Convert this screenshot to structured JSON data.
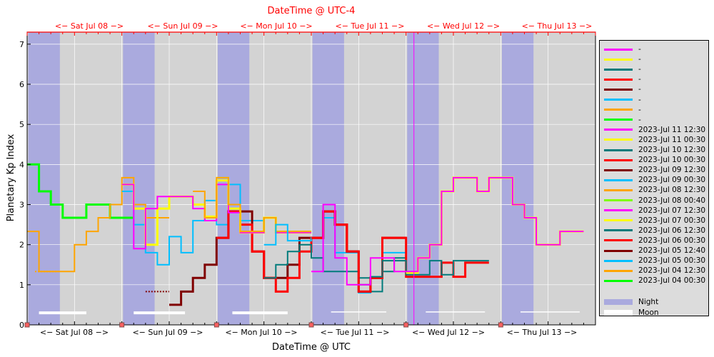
{
  "chart_data": {
    "type": "line",
    "top_title": "DateTime @ UTC-4",
    "xlabel": "DateTime @ UTC",
    "ylabel": "Planetary Kp Index",
    "ylim": [
      0,
      7.3
    ],
    "yticks": [
      0,
      1,
      2,
      3,
      4,
      5,
      6,
      7
    ],
    "xlim": [
      "2023-07-07 00:00",
      "2023-07-13 00:00"
    ],
    "bottom_day_labels": [
      "<− Sat Jul 08 −>",
      "<− Sun Jul 09 −>",
      "<− Mon Jul 10 −>",
      "<− Tue Jul 11 −>",
      "<− Wed Jul 12 −>",
      "<− Thu Jul 13 −>"
    ],
    "top_day_labels": [
      "<− Sat Jul 08 −>",
      "<− Sun Jul 09 −>",
      "<− Mon Jul 10 −>",
      "<− Tue Jul 11 −>",
      "<− Wed Jul 12 −>",
      "<− Thu Jul 13 −>"
    ],
    "grid": true,
    "legend_position": "right",
    "now_marker": "2023-07-11 02:00",
    "night_bands_start_hours": [
      0.3,
      24.3,
      48.3,
      72.3,
      96.3,
      120.3
    ],
    "moon_bars_hours": [
      [
        3,
        15
      ],
      [
        27,
        40
      ],
      [
        52,
        66
      ],
      [
        77,
        91
      ],
      [
        101,
        116
      ],
      [
        125,
        140
      ]
    ],
    "colors": {
      "magenta": "#ff00ff",
      "yellow": "#ffff00",
      "teal": "#007b7b",
      "red": "#ff0000",
      "darkred": "#800000",
      "cyan": "#00bfff",
      "orange": "#ffa500",
      "lime": "#00ff00",
      "lightlime": "#7fff00",
      "night": "#aaaade",
      "plot_bg": "#d3d3d3"
    },
    "legend": [
      {
        "label": "-",
        "color": "#ff00ff"
      },
      {
        "label": "-",
        "color": "#ffff00"
      },
      {
        "label": "-",
        "color": "#007b7b"
      },
      {
        "label": "-",
        "color": "#ff0000"
      },
      {
        "label": "-",
        "color": "#800000"
      },
      {
        "label": "-",
        "color": "#00bfff"
      },
      {
        "label": "-",
        "color": "#ffa500"
      },
      {
        "label": "-",
        "color": "#00ff00"
      },
      {
        "label": "2023-Jul 11 12:30",
        "color": "#ff00ff"
      },
      {
        "label": "2023-Jul 11 00:30",
        "color": "#ffff00"
      },
      {
        "label": "2023-Jul 10 12:30",
        "color": "#007b7b"
      },
      {
        "label": "2023-Jul 10 00:30",
        "color": "#ff0000"
      },
      {
        "label": "2023-Jul 09 12:30",
        "color": "#800000"
      },
      {
        "label": "2023-Jul 09 00:30",
        "color": "#00bfff"
      },
      {
        "label": "2023-Jul 08 12:30",
        "color": "#ffa500"
      },
      {
        "label": "2023-Jul 08 00:40",
        "color": "#7fff00"
      },
      {
        "label": "2023-Jul 07 12:30",
        "color": "#ff00ff"
      },
      {
        "label": "2023-Jul 07 00:30",
        "color": "#ffff00"
      },
      {
        "label": "2023-Jul 06 12:30",
        "color": "#007b7b"
      },
      {
        "label": "2023-Jul 06 00:30",
        "color": "#ff0000"
      },
      {
        "label": "2023-Jul 05 12:40",
        "color": "#800000"
      },
      {
        "label": "2023-Jul 05 00:30",
        "color": "#00bfff"
      },
      {
        "label": "2023-Jul 04 12:30",
        "color": "#ffa500"
      },
      {
        "label": "2023-Jul 04 00:30",
        "color": "#00ff00"
      },
      {
        "label": "Night",
        "color": "#aaaade",
        "thick": true
      },
      {
        "label": "Moon",
        "color": "#ffffff",
        "thick": true
      }
    ],
    "series": [
      {
        "name": "2023-Jul 04 00:30",
        "color": "#00ff00",
        "width": 3,
        "x": [
          0,
          3,
          6,
          9,
          12,
          15,
          18,
          21,
          24
        ],
        "y": [
          4.0,
          3.33,
          3.0,
          2.67,
          2.67,
          3.0,
          3.0,
          2.67,
          2.67
        ]
      },
      {
        "name": "2023-Jul 04 12:30",
        "color": "#ffa500",
        "width": 2,
        "x": [
          0,
          3,
          6,
          9,
          12,
          15,
          18,
          21,
          24,
          27,
          30,
          33
        ],
        "y": [
          2.33,
          1.33,
          1.33,
          1.33,
          2.0,
          2.33,
          2.67,
          3.0,
          3.67,
          3.0,
          2.67,
          2.67
        ],
        "dotted_x": [
          2,
          8
        ],
        "dotted_y": 1.33
      },
      {
        "name": "2023-Jul 05 00:30",
        "color": "#00bfff",
        "width": 2,
        "x": [
          24,
          27,
          30,
          33,
          36,
          39,
          42,
          45,
          48,
          51,
          54,
          57
        ],
        "y": [
          3.33,
          2.5,
          1.8,
          1.5,
          2.2,
          1.8,
          2.6,
          3.1,
          2.5,
          3.5,
          2.6,
          2.6
        ]
      },
      {
        "name": "2023-Jul 05 12:40",
        "color": "#800000",
        "width": 3,
        "x": [
          36,
          39,
          42,
          45,
          48,
          51,
          54,
          57,
          60,
          63,
          66,
          69
        ],
        "y": [
          0.5,
          0.83,
          1.17,
          1.5,
          2.17,
          2.83,
          2.83,
          1.83,
          1.17,
          1.17,
          1.5,
          2.17
        ],
        "dotted_x": [
          30,
          36
        ],
        "dotted_y": 0.83
      },
      {
        "name": "2023-Jul 06 00:30",
        "color": "#ff0000",
        "width": 3,
        "x": [
          48,
          51,
          54,
          57,
          60,
          63,
          66,
          69,
          72,
          75,
          78,
          81
        ],
        "y": [
          2.17,
          2.83,
          2.5,
          1.83,
          1.17,
          0.83,
          1.17,
          1.83,
          2.17,
          2.83,
          2.5,
          1.83
        ]
      },
      {
        "name": "2023-Jul 06 12:30",
        "color": "#007b7b",
        "width": 2,
        "x": [
          60,
          63,
          66,
          69,
          72,
          75,
          78,
          81,
          84,
          87,
          90,
          93
        ],
        "y": [
          1.17,
          1.5,
          1.83,
          2.0,
          1.67,
          1.33,
          1.33,
          1.33,
          1.17,
          0.83,
          1.33,
          1.67
        ]
      },
      {
        "name": "2023-Jul 07 00:30",
        "color": "#ffff00",
        "width": 3,
        "x": [
          24,
          27,
          30,
          33,
          36,
          39,
          42,
          45,
          48,
          51,
          54,
          57,
          60,
          63,
          66,
          69
        ],
        "y": [
          3.5,
          2.9,
          2.0,
          2.9,
          3.2,
          3.2,
          3.0,
          2.7,
          3.6,
          2.9,
          2.3,
          2.3,
          2.67,
          2.3,
          2.3,
          2.3
        ]
      },
      {
        "name": "2023-Jul 07 12:30",
        "color": "#ff00ff",
        "width": 2,
        "x": [
          24,
          27,
          30,
          33,
          36,
          39,
          42,
          45,
          48,
          51,
          54,
          57,
          60,
          63,
          66,
          69
        ],
        "y": [
          3.5,
          1.9,
          2.9,
          3.2,
          3.2,
          3.2,
          2.9,
          2.6,
          3.5,
          2.8,
          2.3,
          2.3,
          2.67,
          2.3,
          2.3,
          2.3
        ]
      },
      {
        "name": "2023-Jul 08 00:40",
        "color": "#7fff00",
        "width": 2,
        "x": [
          48,
          51,
          54,
          57,
          60,
          63,
          66,
          69
        ],
        "y": [
          3.67,
          3.0,
          2.33,
          2.33,
          2.67,
          2.33,
          2.33,
          2.33
        ]
      },
      {
        "name": "2023-Jul 08 12:30",
        "color": "#ffa500",
        "width": 2,
        "x": [
          42,
          45,
          48,
          51,
          54,
          57,
          60,
          63,
          66,
          69
        ],
        "y": [
          3.33,
          2.67,
          3.67,
          3.0,
          2.33,
          2.33,
          2.67,
          2.33,
          2.33,
          2.33
        ]
      },
      {
        "name": "2023-Jul 09 00:30",
        "color": "#00bfff",
        "width": 2,
        "x": [
          60,
          63,
          66,
          69,
          72,
          75,
          78,
          81,
          84,
          87,
          90,
          93
        ],
        "y": [
          2.0,
          2.5,
          2.1,
          2.1,
          2.17,
          2.67,
          1.8,
          1.8,
          0.8,
          1.2,
          1.8,
          1.8
        ]
      },
      {
        "name": "2023-Jul 09 12:30",
        "color": "#800000",
        "width": 3,
        "x": [
          72,
          75,
          78,
          81,
          84,
          87,
          90,
          93
        ],
        "y": [
          2.17,
          2.83,
          2.5,
          1.83,
          0.83,
          1.17,
          2.17,
          2.17
        ]
      },
      {
        "name": "2023-Jul 10 00:30",
        "color": "#ff0000",
        "width": 3,
        "x": [
          72,
          75,
          78,
          81,
          84,
          87,
          90,
          93,
          96,
          99,
          102,
          105,
          108,
          111,
          114
        ],
        "y": [
          2.17,
          2.83,
          2.5,
          1.83,
          0.83,
          1.17,
          2.17,
          2.17,
          1.2,
          1.2,
          1.2,
          1.55,
          1.2,
          1.55,
          1.55
        ]
      },
      {
        "name": "2023-Jul 10 12:30",
        "color": "#007b7b",
        "width": 2,
        "x": [
          84,
          87,
          90,
          93,
          96,
          99,
          102,
          105,
          108,
          111,
          114
        ],
        "y": [
          1.0,
          1.2,
          1.6,
          1.6,
          1.25,
          1.25,
          1.6,
          1.25,
          1.6,
          1.6,
          1.6
        ]
      },
      {
        "name": "2023-Jul 11 00:30",
        "color": "#ffff00",
        "width": 3,
        "x": [
          96,
          99,
          102,
          105,
          108,
          111,
          114,
          117,
          120,
          123,
          126,
          129,
          132,
          135,
          138
        ],
        "y": [
          1.3,
          1.67,
          2.0,
          3.33,
          3.67,
          3.67,
          3.33,
          3.67,
          3.67,
          3.0,
          2.67,
          2.0,
          2.0,
          2.33,
          2.33
        ]
      },
      {
        "name": "2023-Jul 11 12:30",
        "color": "#ff00ff",
        "width": 2,
        "x": [
          72,
          75,
          78,
          81,
          84,
          87,
          90,
          93,
          96,
          99,
          102,
          105,
          108,
          111,
          114,
          117,
          120,
          123,
          126,
          129,
          132,
          135,
          138
        ],
        "y": [
          1.33,
          3.0,
          1.67,
          1.0,
          1.0,
          1.67,
          1.67,
          1.33,
          1.33,
          1.67,
          2.0,
          3.33,
          3.67,
          3.67,
          3.33,
          3.67,
          3.67,
          3.0,
          2.67,
          2.0,
          2.0,
          2.33,
          2.33
        ]
      }
    ]
  }
}
